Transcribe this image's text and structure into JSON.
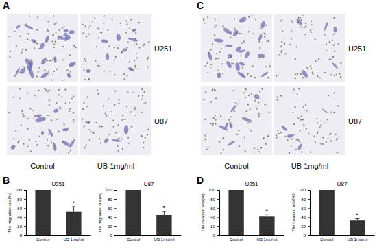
{
  "figure": {
    "image_panels": [
      {
        "label": "A",
        "rows": [
          "U251",
          "U87"
        ],
        "columns": [
          "Control",
          "UB 1mg/ml"
        ]
      },
      {
        "label": "C",
        "rows": [
          "U251",
          "U87"
        ],
        "columns": [
          "Control",
          "UB 1mg/ml"
        ]
      }
    ],
    "chart_panel_labels": [
      "B",
      "D"
    ]
  },
  "chart_data": [
    {
      "type": "bar",
      "title": "U251",
      "y_label": "The migration rate(%)",
      "categories": [
        "Control",
        "UB 1mg/ml"
      ],
      "values": [
        100,
        52
      ],
      "errors": [
        0,
        12
      ],
      "annotations": [
        {
          "text": "*",
          "category": "UB 1mg/ml"
        }
      ],
      "color": "#333333",
      "ylim": [
        0,
        100
      ],
      "yticks": [
        0,
        20,
        40,
        60,
        80,
        100
      ]
    },
    {
      "type": "bar",
      "title": "U87",
      "y_label": "The migration rate(%)",
      "categories": [
        "Control",
        "UB 1mg/ml"
      ],
      "values": [
        100,
        45
      ],
      "errors": [
        0,
        8
      ],
      "annotations": [
        {
          "text": "*",
          "category": "UB 1mg/ml"
        }
      ],
      "color": "#333333",
      "ylim": [
        0,
        100
      ],
      "yticks": [
        0,
        20,
        40,
        60,
        80,
        100
      ]
    },
    {
      "type": "bar",
      "title": "U251",
      "y_label": "The invasion rate(%)",
      "categories": [
        "Control",
        "UB 1mg/ml"
      ],
      "values": [
        100,
        42
      ],
      "errors": [
        0,
        3
      ],
      "annotations": [
        {
          "text": "*",
          "category": "UB 1mg/ml"
        }
      ],
      "color": "#333333",
      "ylim": [
        0,
        100
      ],
      "yticks": [
        0,
        20,
        40,
        60,
        80,
        100
      ]
    },
    {
      "type": "bar",
      "title": "U87",
      "y_label": "The invasion rate(%)",
      "categories": [
        "Control",
        "UB 1mg/ml"
      ],
      "values": [
        100,
        33
      ],
      "errors": [
        0,
        4
      ],
      "annotations": [
        {
          "text": "*",
          "category": "UB 1mg/ml"
        }
      ],
      "color": "#333333",
      "ylim": [
        0,
        100
      ],
      "yticks": [
        0,
        20,
        40,
        60,
        80,
        100
      ]
    }
  ]
}
